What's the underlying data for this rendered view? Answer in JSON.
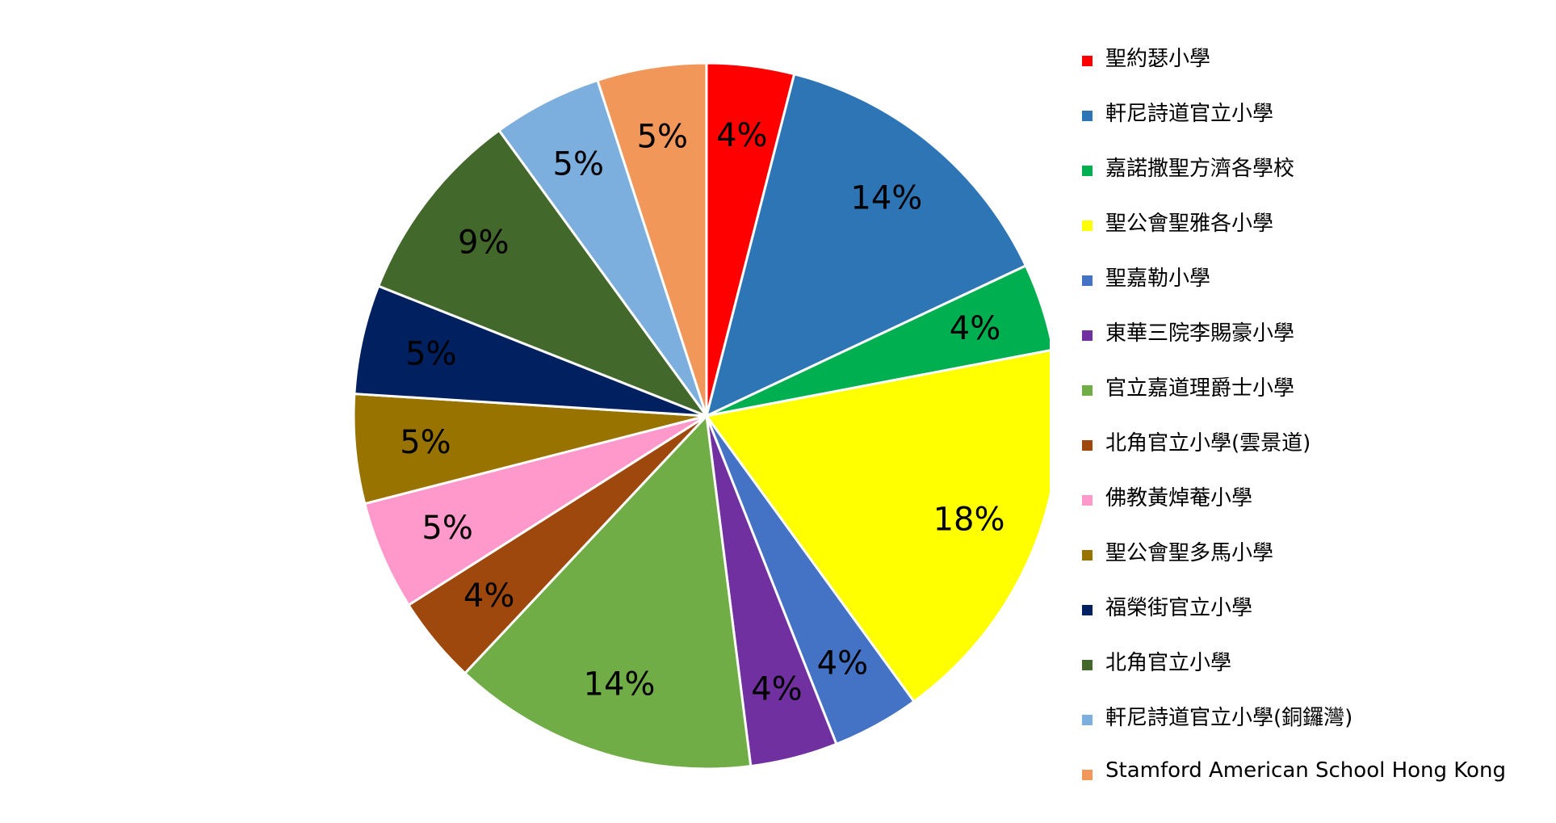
{
  "chart_data": {
    "type": "pie",
    "title": "",
    "legend_position": "right",
    "slices": [
      {
        "name": "聖約瑟小學",
        "value": 4,
        "label": "4%",
        "color": "#FF0000"
      },
      {
        "name": "軒尼詩道官立小學",
        "value": 14,
        "label": "14%",
        "color": "#2E75B6"
      },
      {
        "name": "嘉諾撒聖方濟各學校",
        "value": 4,
        "label": "4%",
        "color": "#00B050"
      },
      {
        "name": "聖公會聖雅各小學",
        "value": 18,
        "label": "18%",
        "color": "#FFFF00"
      },
      {
        "name": "聖嘉勒小學",
        "value": 4,
        "label": "4%",
        "color": "#4472C4"
      },
      {
        "name": "東華三院李賜豪小學",
        "value": 4,
        "label": "4%",
        "color": "#7030A0"
      },
      {
        "name": "官立嘉道理爵士小學",
        "value": 14,
        "label": "14%",
        "color": "#70AD47"
      },
      {
        "name": "北角官立小學(雲景道)",
        "value": 4,
        "label": "4%",
        "color": "#9E480E"
      },
      {
        "name": "佛教黃焯菴小學",
        "value": 5,
        "label": "5%",
        "color": "#FF99CC"
      },
      {
        "name": "聖公會聖多馬小學",
        "value": 5,
        "label": "5%",
        "color": "#997300"
      },
      {
        "name": "福榮街官立小學",
        "value": 5,
        "label": "5%",
        "color": "#002060"
      },
      {
        "name": "北角官立小學",
        "value": 9,
        "label": "9%",
        "color": "#43682B"
      },
      {
        "name": "軒尼詩道官立小學(銅鑼灣)",
        "value": 5,
        "label": "5%",
        "color": "#7CAFDD"
      },
      {
        "name": "Stamford American School Hong Kong",
        "value": 5,
        "label": "5%",
        "color": "#F1975A"
      }
    ]
  }
}
